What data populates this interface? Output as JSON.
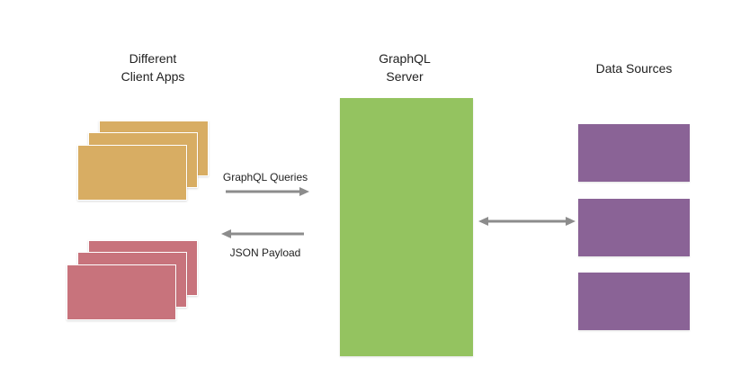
{
  "labels": {
    "clients": [
      "Different",
      "Client Apps"
    ],
    "server": [
      "GraphQL",
      "Server"
    ],
    "sources": "Data Sources",
    "queries": "GraphQL Queries",
    "payload": "JSON Payload"
  },
  "colors": {
    "client_app_yellow": "#d8ad63",
    "client_app_red": "#c8737c",
    "server_green": "#94c360",
    "data_source_purple": "#8a6396",
    "arrow_gray": "#8c8c8c"
  },
  "structure": {
    "client_stack_count": 2,
    "cards_per_stack": 3,
    "data_source_count": 3
  }
}
